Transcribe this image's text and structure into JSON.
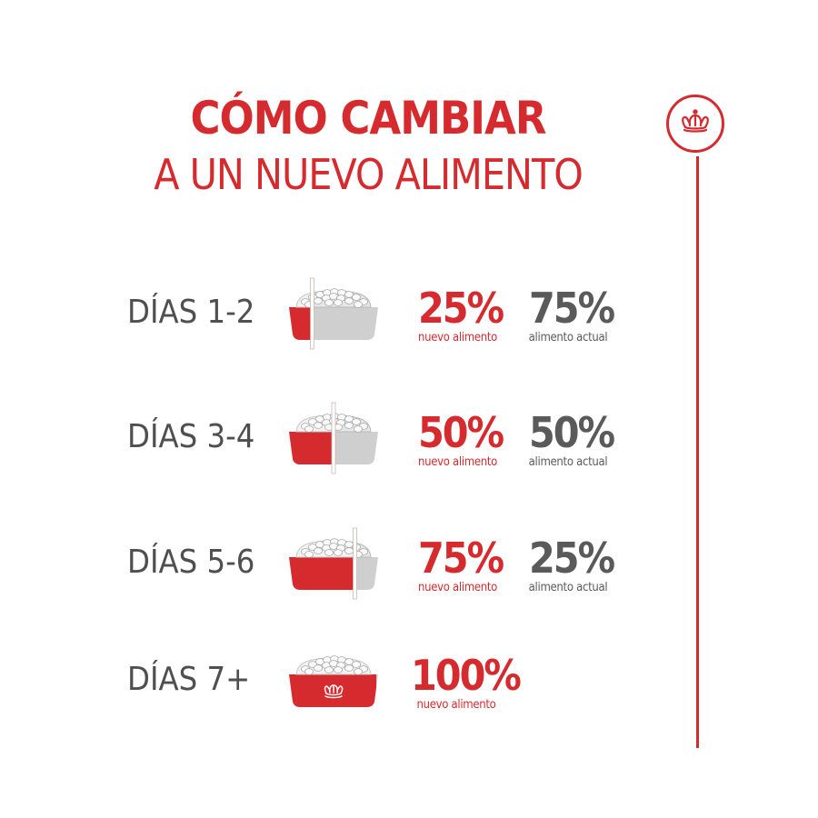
{
  "title": {
    "line1": "CÓMO CAMBIAR",
    "line2": "A UN NUEVO ALIMENTO"
  },
  "colors": {
    "brand_red": "#d52b2f",
    "gray_text": "#5a5a5a",
    "bowl_gray": "#cfcfcf",
    "day_text": "#4f4f4f"
  },
  "icons": {
    "logo": "crown-icon",
    "bowl": "food-bowl-icon"
  },
  "steps": [
    {
      "day": "DÍAS 1-2",
      "new_pct": "25%",
      "new_label": "nuevo alimento",
      "new_fraction": 0.25,
      "cur_pct": "75%",
      "cur_label": "alimento actual"
    },
    {
      "day": "DÍAS 3-4",
      "new_pct": "50%",
      "new_label": "nuevo alimento",
      "new_fraction": 0.5,
      "cur_pct": "50%",
      "cur_label": "alimento actual"
    },
    {
      "day": "DÍAS 5-6",
      "new_pct": "75%",
      "new_label": "nuevo alimento",
      "new_fraction": 0.75,
      "cur_pct": "25%",
      "cur_label": "alimento actual"
    },
    {
      "day": "DÍAS 7+",
      "new_pct": "100%",
      "new_label": "nuevo alimento",
      "new_fraction": 1.0
    }
  ]
}
